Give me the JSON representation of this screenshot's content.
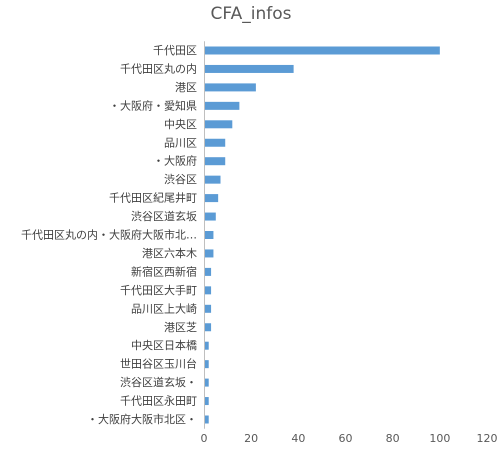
{
  "chart_data": {
    "type": "bar",
    "orientation": "horizontal",
    "title": "CFA_infos",
    "categories": [
      "千代田区",
      "千代田区丸の内",
      "港区",
      "・大阪府・愛知県",
      "中央区",
      "品川区",
      "・大阪府",
      "渋谷区",
      "千代田区紀尾井町",
      "渋谷区道玄坂",
      "千代田区丸の内・大阪府大阪市北…",
      "港区六本木",
      "新宿区西新宿",
      "千代田区大手町",
      "品川区上大崎",
      "港区芝",
      "中央区日本橋",
      "世田谷区玉川台",
      "渋谷区道玄坂・",
      "千代田区永田町",
      "・大阪府大阪市北区・"
    ],
    "values": [
      100,
      38,
      22,
      15,
      12,
      9,
      9,
      7,
      6,
      5,
      4,
      4,
      3,
      3,
      3,
      3,
      2,
      2,
      2,
      2,
      2
    ],
    "xlim": [
      0,
      120
    ],
    "xticks": [
      "0",
      "20",
      "40",
      "60",
      "80",
      "100",
      "120"
    ],
    "xlabel": "",
    "ylabel": "",
    "grid": false,
    "legend": "none",
    "bar_color": "#5b9bd5"
  }
}
